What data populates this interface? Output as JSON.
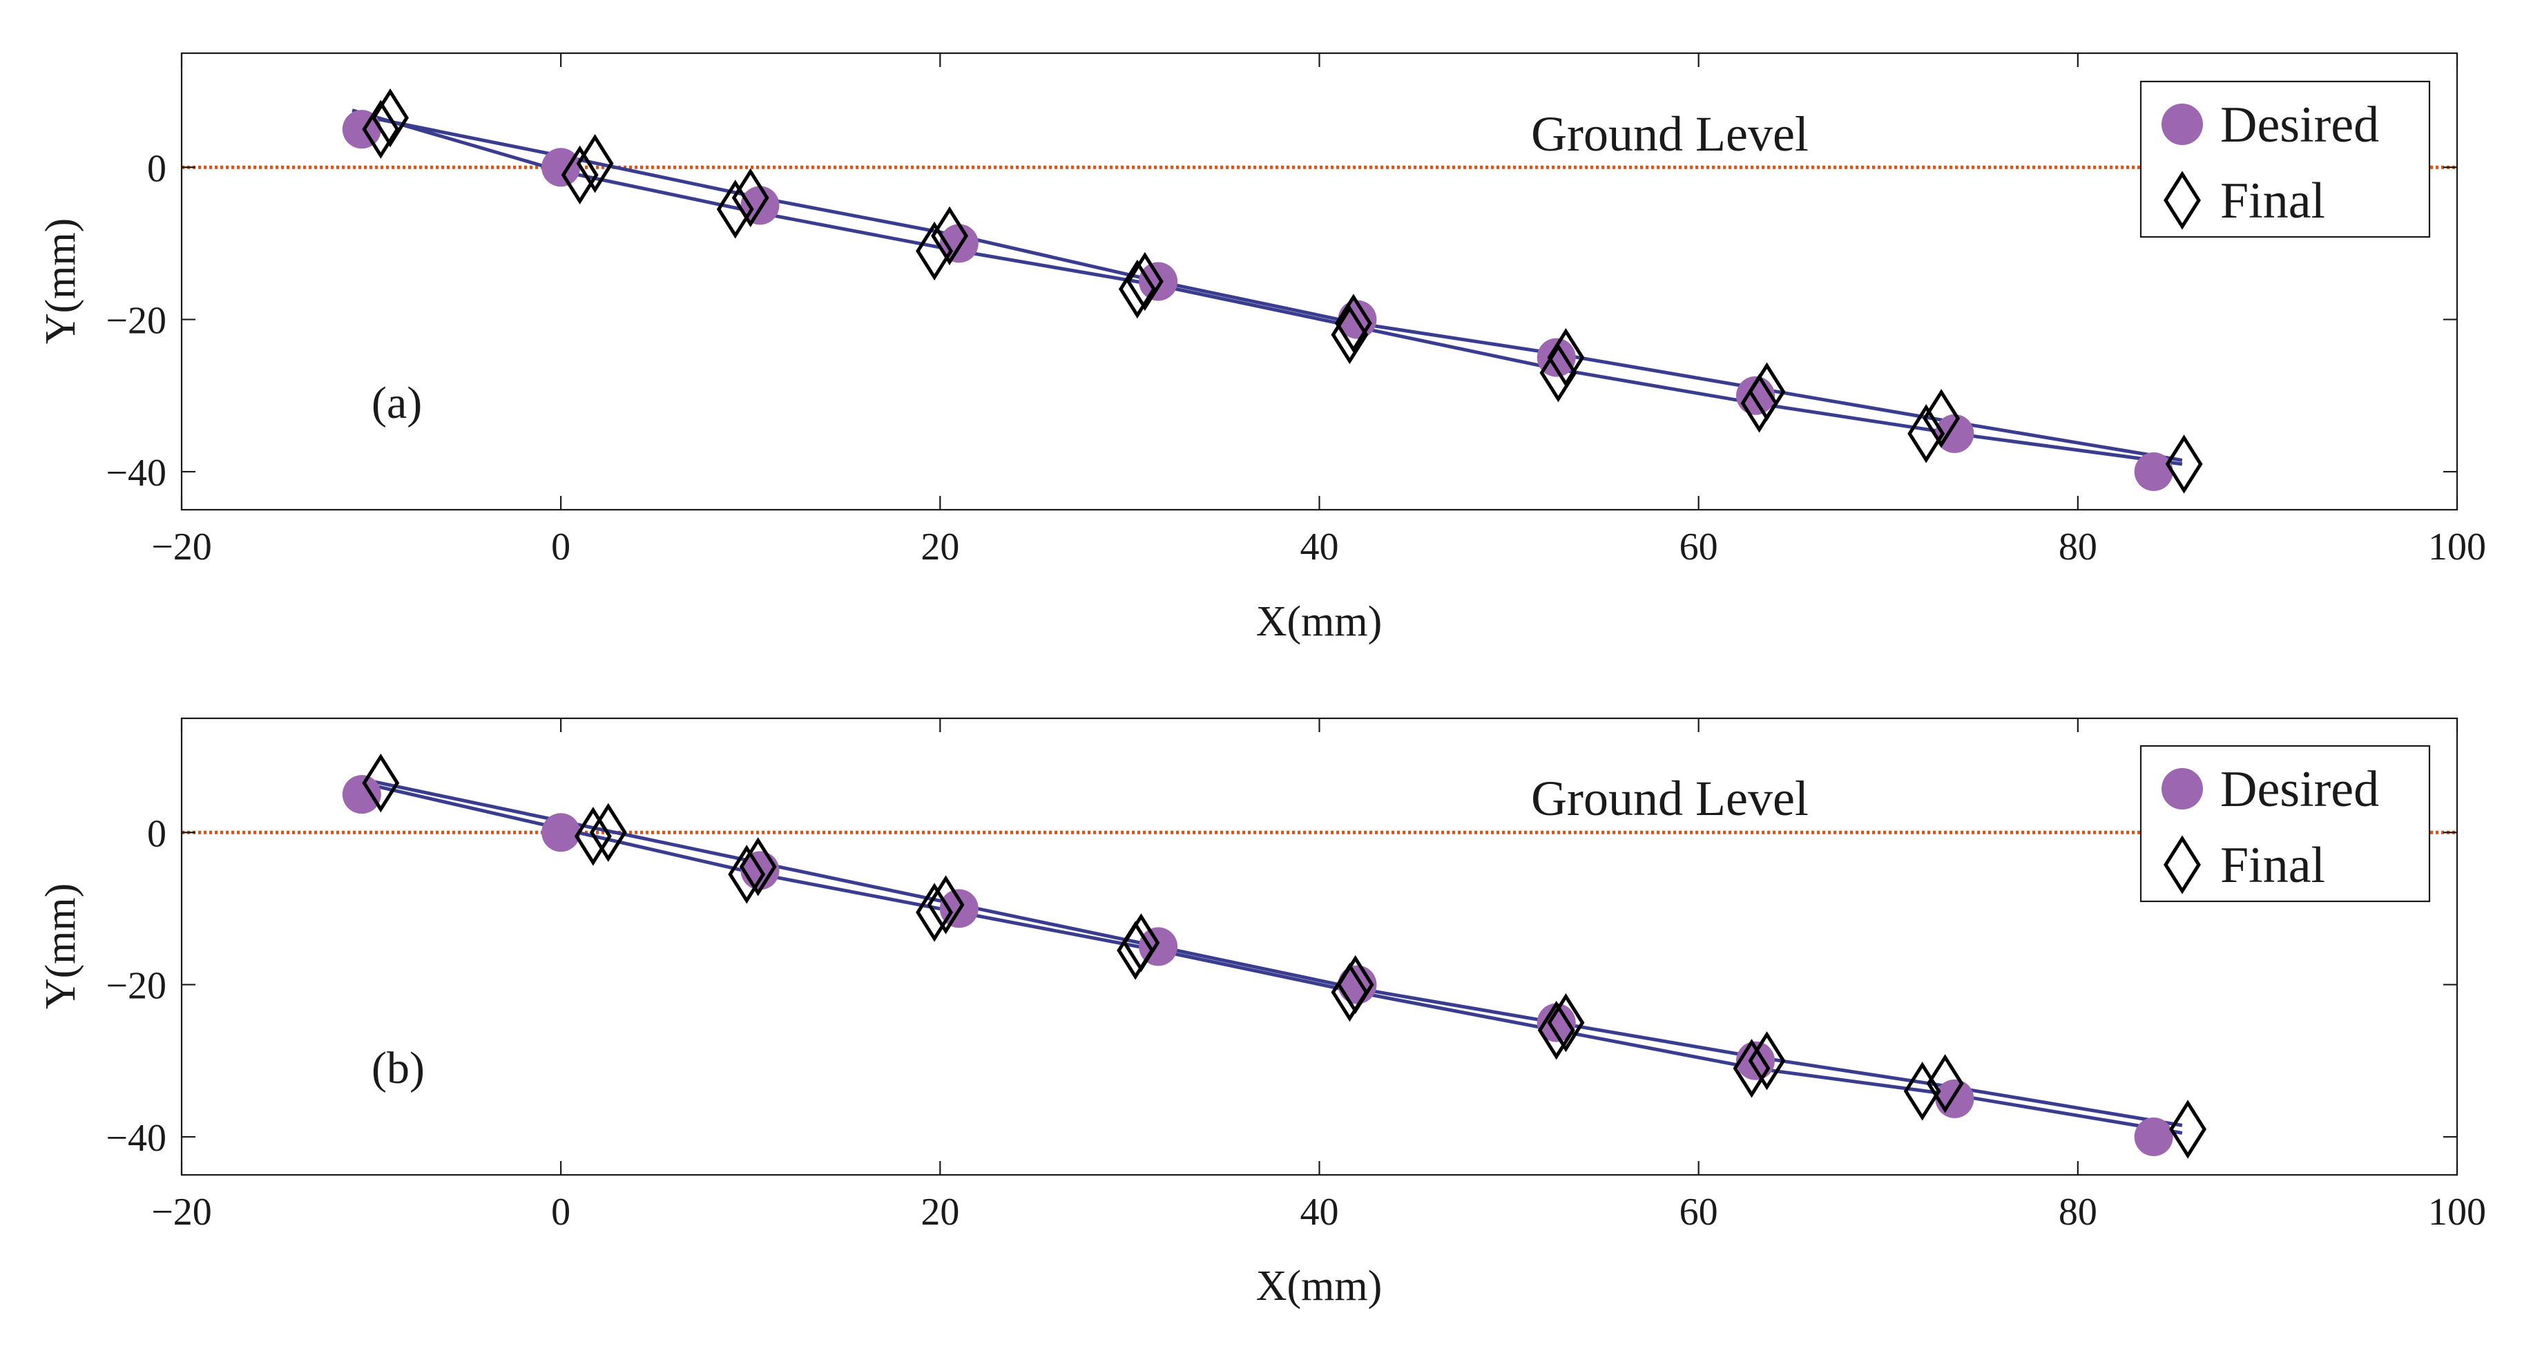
{
  "colors": {
    "desired": "#9c66b0",
    "final": "#000000",
    "trajectory": "#3a3d8f",
    "ground": "#d95319",
    "axis": "#1a1a1a"
  },
  "chart_data": [
    {
      "type": "line",
      "panel_label": "(a)",
      "xlabel": "X(mm)",
      "ylabel": "Y(mm)",
      "xlim": [
        -20,
        100
      ],
      "ylim": [
        -45,
        15
      ],
      "xticks": [
        -20,
        0,
        20,
        40,
        60,
        80,
        100
      ],
      "xtick_labels": [
        "−20",
        "0",
        "20",
        "40",
        "60",
        "80",
        "100"
      ],
      "yticks": [
        -40,
        -20,
        0
      ],
      "ytick_labels": [
        "−40",
        "−20",
        "0"
      ],
      "grid": false,
      "legend": {
        "position": "top-right",
        "entries": [
          "Desired",
          "Final"
        ]
      },
      "annotations": {
        "ground_label": "Ground Level",
        "ground_y": 0
      },
      "series": [
        {
          "name": "Desired",
          "marker": "circle",
          "x": [
            -10.5,
            0,
            10.5,
            21,
            31.5,
            42,
            52.5,
            63,
            73.5,
            84
          ],
          "y": [
            5,
            0,
            -5,
            -10,
            -15,
            -20,
            -25,
            -30,
            -35,
            -40
          ]
        },
        {
          "name": "Final",
          "marker": "diamond",
          "x": [
            -9,
            -9.5,
            1,
            1.8,
            10,
            9.2,
            20.5,
            19.7,
            30.8,
            30.4,
            41.8,
            41.6,
            53,
            52.6,
            63.6,
            63.2,
            72.8,
            72,
            85.6
          ],
          "y": [
            6.5,
            5,
            -1,
            0.5,
            -4,
            -5.5,
            -9,
            -11,
            -15,
            -16,
            -20.5,
            -22,
            -25,
            -27,
            -29.5,
            -31,
            -33,
            -35,
            -39
          ],
          "lines": [
            {
              "x": [
                -11,
                0,
                10.5,
                21,
                31.5,
                42,
                52.5,
                63,
                73.5,
                85.5
              ],
              "y": [
                7,
                1.5,
                -4,
                -9,
                -15,
                -20.5,
                -24.5,
                -29,
                -33.5,
                -38.5
              ]
            },
            {
              "x": [
                -11,
                0,
                10.5,
                21,
                31.5,
                42,
                52.5,
                63,
                73.5,
                85.5
              ],
              "y": [
                7.5,
                -0.5,
                -6,
                -11,
                -15.5,
                -21,
                -26.5,
                -31,
                -35,
                -39
              ]
            }
          ]
        }
      ]
    },
    {
      "type": "line",
      "panel_label": "(b)",
      "xlabel": "X(mm)",
      "ylabel": "Y(mm)",
      "xlim": [
        -20,
        100
      ],
      "ylim": [
        -45,
        15
      ],
      "xticks": [
        -20,
        0,
        20,
        40,
        60,
        80,
        100
      ],
      "xtick_labels": [
        "−20",
        "0",
        "20",
        "40",
        "60",
        "80",
        "100"
      ],
      "yticks": [
        -40,
        -20,
        0
      ],
      "ytick_labels": [
        "−40",
        "−20",
        "0"
      ],
      "grid": false,
      "legend": {
        "position": "top-right",
        "entries": [
          "Desired",
          "Final"
        ]
      },
      "annotations": {
        "ground_label": "Ground Level",
        "ground_y": 0
      },
      "series": [
        {
          "name": "Desired",
          "marker": "circle",
          "x": [
            -10.5,
            0,
            10.5,
            21,
            31.5,
            42,
            52.5,
            63,
            73.5,
            84
          ],
          "y": [
            5,
            0,
            -5,
            -10,
            -15,
            -20,
            -25,
            -30,
            -35,
            -40
          ]
        },
        {
          "name": "Final",
          "marker": "diamond",
          "x": [
            -9.5,
            1.7,
            2.5,
            9.8,
            10.4,
            19.7,
            20.3,
            30.3,
            30.6,
            41.6,
            41.9,
            52.5,
            53,
            62.8,
            63.6,
            71.8,
            73,
            85.8
          ],
          "y": [
            6.5,
            -0.5,
            0,
            -5.5,
            -4.5,
            -10.5,
            -9.5,
            -15.5,
            -14.5,
            -21,
            -20,
            -26,
            -25,
            -31,
            -30,
            -34,
            -33,
            -39
          ],
          "lines": [
            {
              "x": [
                -10.5,
                0,
                10.5,
                21,
                31.5,
                42,
                52.5,
                63,
                73.5,
                85.5
              ],
              "y": [
                7,
                1.5,
                -4,
                -9.5,
                -15,
                -20.5,
                -25,
                -29.5,
                -33.5,
                -38.5
              ]
            },
            {
              "x": [
                -10.5,
                0,
                10.5,
                21,
                31.5,
                42,
                52.5,
                63,
                73.5,
                85.5
              ],
              "y": [
                6.5,
                0.5,
                -5.5,
                -10.5,
                -15.5,
                -21,
                -26,
                -31,
                -34.5,
                -39.5
              ]
            }
          ]
        }
      ]
    }
  ]
}
